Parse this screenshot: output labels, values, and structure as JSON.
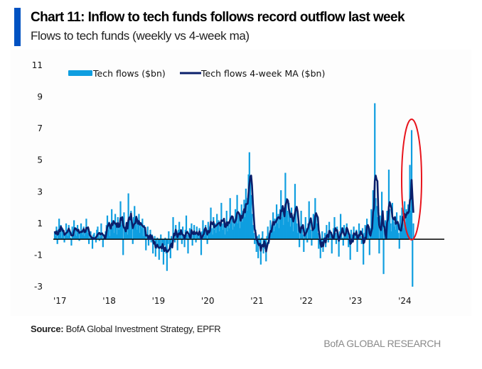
{
  "header": {
    "title": "Chart 11: Inflow to tech funds follows record outflow last week",
    "subtitle": "Flows to tech funds (weekly vs 4-week ma)"
  },
  "footer": {
    "source_label": "Source:",
    "source_text": " BofA Global Investment Strategy, EPFR",
    "brand": "BofA GLOBAL RESEARCH"
  },
  "colors": {
    "accent": "#0052c2",
    "bars": "#0f9ee0",
    "ma_line": "#0a1f6b",
    "zero_line": "#000000",
    "highlight": "#e8141c"
  },
  "chart_data": {
    "type": "bar+line",
    "title": "Chart 11: Inflow to tech funds follows record outflow last week",
    "subtitle": "Flows to tech funds (weekly vs 4-week ma)",
    "xlabel": "",
    "ylabel": "",
    "ylim": [
      -3,
      11
    ],
    "yticks": [
      11,
      9,
      7,
      5,
      3,
      1,
      -1,
      -3
    ],
    "x_tick_labels": [
      "'17",
      "'18",
      "'19",
      "'20",
      "'21",
      "'22",
      "'23",
      "'24"
    ],
    "x_range_years": [
      2017.0,
      2025.0
    ],
    "grid": false,
    "legend": {
      "placement": "top",
      "entries": [
        {
          "name": "Tech flows ($bn)",
          "style": "bar"
        },
        {
          "name": "Tech flows 4-week MA ($bn)",
          "style": "line"
        }
      ]
    },
    "annotation": "red ellipse highlighting latest weeks (2024)",
    "series": [
      {
        "name": "Tech flows ($bn)",
        "type": "bar",
        "note": "weekly values, Jan 2017 - Apr 2024 (approximate, read from chart)",
        "start_year": 2017.0,
        "values": [
          0.5,
          0.2,
          0.8,
          -0.3,
          0.6,
          1.3,
          0.4,
          0.9,
          0.1,
          0.7,
          0.5,
          -0.2,
          0.3,
          1.0,
          0.6,
          0.2,
          0.9,
          0.4,
          0.1,
          -0.4,
          0.8,
          0.5,
          1.2,
          0.3,
          0.7,
          0.2,
          0.9,
          0.6,
          -0.1,
          0.4,
          1.0,
          0.5,
          0.3,
          0.8,
          0.2,
          0.6,
          1.3,
          0.7,
          0.4,
          -0.3,
          0.2,
          0.5,
          0.1,
          -0.6,
          0.3,
          0.4,
          0.0,
          -0.2,
          0.6,
          0.8,
          0.3,
          -0.1,
          0.2,
          1.0,
          0.4,
          -0.5,
          0.1,
          0.3,
          0.5,
          0.9,
          1.5,
          0.6,
          1.1,
          0.2,
          0.8,
          1.9,
          0.7,
          1.2,
          0.4,
          1.6,
          0.8,
          0.3,
          1.4,
          0.6,
          1.0,
          2.4,
          0.9,
          1.3,
          -1.0,
          1.7,
          0.8,
          0.5,
          1.1,
          0.3,
          2.9,
          1.2,
          0.6,
          1.8,
          0.7,
          -0.3,
          1.4,
          2.1,
          0.9,
          1.3,
          0.6,
          1.1,
          1.6,
          0.4,
          1.0,
          0.7,
          1.3,
          0.2,
          0.9,
          0.5,
          -0.7,
          0.3,
          0.8,
          -0.4,
          0.1,
          0.6,
          -0.2,
          0.3,
          -0.9,
          -0.3,
          0.2,
          -1.1,
          -0.6,
          0.1,
          -0.4,
          -1.3,
          -0.5,
          0.3,
          -0.8,
          -0.2,
          -1.6,
          -0.4,
          0.1,
          -0.9,
          -2.0,
          -0.3,
          0.5,
          -0.6,
          -1.2,
          0.2,
          -0.5,
          1.4,
          0.3,
          -0.2,
          0.9,
          0.5,
          -0.7,
          0.6,
          1.1,
          0.2,
          0.4,
          -0.3,
          0.8,
          0.1,
          -0.5,
          0.6,
          1.5,
          0.3,
          -0.9,
          0.4,
          0.7,
          0.2,
          1.0,
          -0.4,
          0.5,
          0.9,
          0.3,
          -0.2,
          0.8,
          0.4,
          0.1,
          0.7,
          0.3,
          -1.0,
          0.5,
          1.2,
          0.6,
          0.2,
          0.9,
          0.4,
          -0.3,
          1.1,
          0.5,
          0.8,
          2.0,
          0.7,
          0.3,
          1.4,
          0.6,
          1.0,
          0.4,
          1.6,
          0.9,
          1.2,
          0.5,
          0.8,
          2.3,
          1.0,
          0.6,
          1.3,
          0.3,
          0.9,
          1.8,
          0.5,
          1.1,
          0.7,
          2.6,
          1.0,
          1.5,
          0.6,
          1.3,
          0.8,
          1.9,
          1.2,
          2.8,
          1.0,
          1.6,
          0.7,
          1.4,
          2.2,
          1.1,
          1.8,
          2.5,
          1.4,
          3.2,
          1.8,
          2.6,
          4.1,
          5.5,
          3.7,
          2.8,
          1.6,
          0.9,
          0.4,
          -0.3,
          0.6,
          -0.8,
          0.2,
          -1.2,
          0.3,
          -0.4,
          -1.6,
          0.1,
          0.5,
          -0.9,
          -0.2,
          -0.6,
          -1.4,
          0.2,
          0.8,
          -0.3,
          0.4,
          1.2,
          0.6,
          0.9,
          1.7,
          0.5,
          1.3,
          0.8,
          2.2,
          1.0,
          1.6,
          0.7,
          1.9,
          3.1,
          1.4,
          2.0,
          0.9,
          1.5,
          4.2,
          2.6,
          1.8,
          1.1,
          2.3,
          1.4,
          0.8,
          2.0,
          1.2,
          0.5,
          1.6,
          3.5,
          2.1,
          1.0,
          0.4,
          1.2,
          -0.5,
          0.6,
          1.8,
          0.9,
          0.3,
          -0.8,
          0.5,
          1.4,
          0.7,
          -0.2,
          1.0,
          2.4,
          1.3,
          0.6,
          -0.4,
          0.8,
          1.6,
          0.9,
          2.6,
          1.5,
          1.0,
          0.4,
          -0.6,
          0.2,
          -1.2,
          -0.3,
          0.5,
          -0.8,
          0.1,
          0.4,
          -0.5,
          0.9,
          0.3,
          -0.2,
          1.1,
          0.6,
          0.2,
          -0.9,
          0.3,
          0.7,
          1.4,
          0.4,
          -0.3,
          0.8,
          0.2,
          -1.1,
          0.5,
          1.6,
          0.6,
          0.1,
          -0.4,
          0.9,
          0.3,
          0.7,
          1.0,
          0.4,
          -0.5,
          0.2,
          -1.3,
          0.6,
          0.3,
          -0.2,
          0.8,
          0.4,
          0.1,
          0.6,
          -0.8,
          0.3,
          1.0,
          0.5,
          0.2,
          -0.3,
          0.7,
          -1.6,
          0.4,
          0.9,
          0.6,
          1.3,
          0.8,
          0.4,
          -1.0,
          0.7,
          1.9,
          1.2,
          3.1,
          1.8,
          8.6,
          2.6,
          2.1,
          1.4,
          0.8,
          -0.9,
          1.5,
          0.9,
          3.0,
          1.7,
          -2.2,
          0.6,
          1.2,
          0.7,
          1.8,
          1.3,
          4.4,
          1.9,
          1.0,
          0.5,
          2.3,
          1.4,
          0.8,
          1.1,
          0.6,
          1.7,
          1.0,
          0.4,
          -0.6,
          1.5,
          0.9,
          2.0,
          1.3,
          0.7,
          2.4,
          1.1,
          1.9,
          1.4,
          2.2,
          1.6,
          4.7,
          1.8,
          6.9,
          -3.0,
          1.0
        ]
      },
      {
        "name": "Tech flows 4-week MA ($bn)",
        "type": "line",
        "note": "4-week moving average of weekly flows"
      }
    ]
  }
}
